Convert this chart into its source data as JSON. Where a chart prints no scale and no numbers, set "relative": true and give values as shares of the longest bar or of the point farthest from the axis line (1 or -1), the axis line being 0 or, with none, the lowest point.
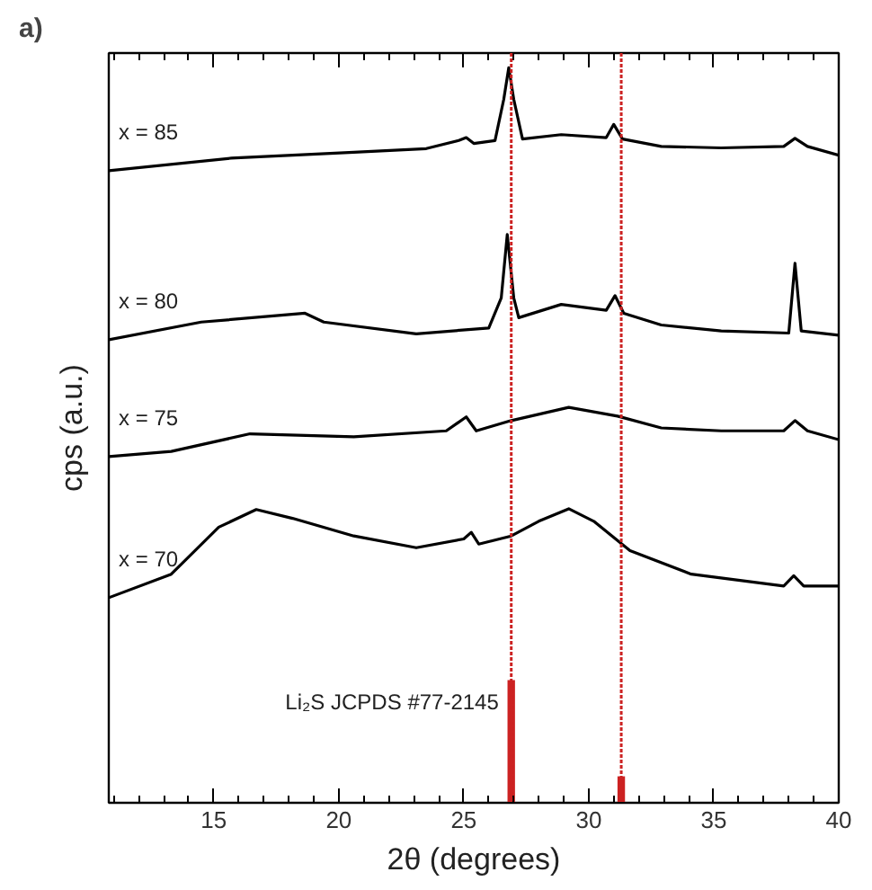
{
  "chart_data": {
    "type": "line",
    "relative": true,
    "xlabel": "2θ (degrees)",
    "ylabel": "cps (a.u.)",
    "annotations": [
      "a)"
    ],
    "tick_labels": "x",
    "grid": false,
    "marker": "none",
    "line_style": "solid",
    "xlim": [
      10.8,
      40
    ],
    "xticks": [
      15,
      20,
      25,
      30,
      35,
      40
    ],
    "ref_lines": [
      {
        "axis": "x",
        "value": 26.9,
        "color": "#cc2222",
        "line_style": "dotted"
      },
      {
        "axis": "x",
        "value": 31.3,
        "color": "#cc2222",
        "line_style": "dotted"
      }
    ],
    "series": [
      {
        "name": "x = 85",
        "color": "#000000",
        "x": [
          10.8,
          15.7,
          20.6,
          23.5,
          24.8,
          25.1,
          25.4,
          26.25,
          26.6,
          26.8,
          27.0,
          27.35,
          28.9,
          30.7,
          31.0,
          31.35,
          32.9,
          35.3,
          37.8,
          38.25,
          38.75,
          40
        ],
        "values": [
          0.86,
          0.877,
          0.885,
          0.89,
          0.901,
          0.905,
          0.897,
          0.901,
          0.957,
          1.0,
          0.957,
          0.903,
          0.909,
          0.905,
          0.923,
          0.903,
          0.893,
          0.891,
          0.893,
          0.904,
          0.893,
          0.881
        ]
      },
      {
        "name": "x = 80",
        "color": "#000000",
        "x": [
          10.8,
          14.5,
          18.65,
          19.4,
          23.1,
          26.0,
          26.5,
          26.74,
          27.0,
          27.2,
          28.9,
          30.7,
          31.05,
          31.4,
          32.9,
          35.3,
          38.0,
          38.25,
          38.5,
          40
        ],
        "values": [
          0.63,
          0.654,
          0.666,
          0.654,
          0.638,
          0.646,
          0.687,
          0.773,
          0.687,
          0.66,
          0.678,
          0.67,
          0.69,
          0.666,
          0.65,
          0.642,
          0.639,
          0.734,
          0.642,
          0.636
        ]
      },
      {
        "name": "x = 75",
        "color": "#000000",
        "x": [
          10.8,
          13.3,
          16.45,
          20.6,
          24.3,
          25.1,
          25.5,
          26.9,
          29.2,
          31.15,
          32.9,
          35.3,
          37.8,
          38.25,
          38.75,
          40
        ],
        "values": [
          0.471,
          0.478,
          0.502,
          0.498,
          0.506,
          0.525,
          0.506,
          0.52,
          0.538,
          0.526,
          0.51,
          0.506,
          0.506,
          0.52,
          0.506,
          0.494
        ]
      },
      {
        "name": "x = 70",
        "color": "#000000",
        "x": [
          10.8,
          13.3,
          15.2,
          16.7,
          18.15,
          20.6,
          23.1,
          25.0,
          25.3,
          25.6,
          26.9,
          28.0,
          29.2,
          30.2,
          31.65,
          34.1,
          37.8,
          38.2,
          38.6,
          40
        ],
        "values": [
          0.279,
          0.311,
          0.375,
          0.399,
          0.387,
          0.363,
          0.347,
          0.359,
          0.368,
          0.352,
          0.363,
          0.383,
          0.4,
          0.383,
          0.343,
          0.311,
          0.295,
          0.309,
          0.295,
          0.295
        ]
      },
      {
        "name": "Li₂S JCPDS #77-2145",
        "type": "bar",
        "color": "#cc2222",
        "x": [
          26.9,
          31.3
        ],
        "values": [
          0.167,
          0.036
        ]
      }
    ]
  }
}
